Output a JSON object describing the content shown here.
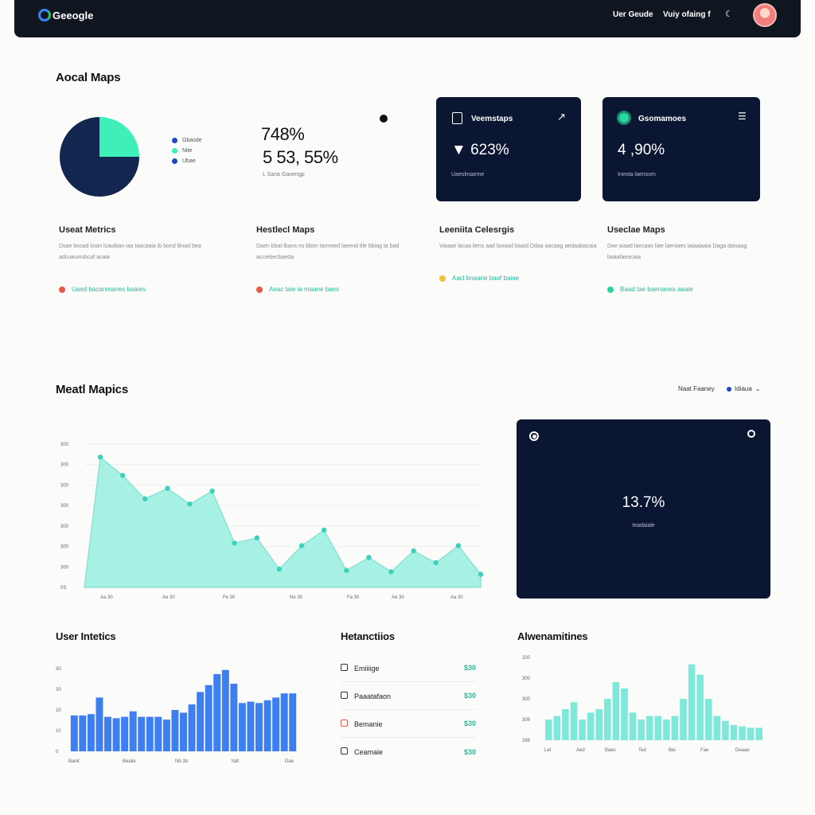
{
  "header": {
    "logo": "Geeogle",
    "nav": [
      "Uer Geude",
      "Vuiy ofaing f"
    ],
    "nav_icon": "moon-icon"
  },
  "section1": {
    "title": "Aocal Maps",
    "pie": {
      "slices": [
        {
          "label": "Gbasde",
          "value": 75,
          "color": "#13264f"
        },
        {
          "label": "Nite",
          "value": 25,
          "color": "#3ef0b8"
        }
      ],
      "legend": [
        {
          "label": "Gbasde",
          "color": "#2346c8"
        },
        {
          "label": "Nite",
          "color": "#3ef0b8"
        },
        {
          "label": "Ubae",
          "color": "#2346c8"
        }
      ]
    },
    "stat_primary": "748%",
    "stat_secondary": "5 53, 55%",
    "stat_caption": "L Sana Gaoengp",
    "cards": [
      {
        "title": "Veemstaps",
        "value": "▼ 623%",
        "sub": "Uaeslmaeme",
        "icon": "document-icon",
        "corner_icon": "arrow-icon"
      },
      {
        "title": "Gsomamoes",
        "value": "4 ,90%",
        "sub": "Ineota laensom",
        "icon": "globe-icon",
        "corner_icon": "menu-icon"
      }
    ]
  },
  "metrics": [
    {
      "title": "Useat Metrics",
      "desc": "Dsae bosad iinan lcauiban iaa taacaaia ib bond Bnad bea adcuauinsbcaf acaia",
      "link": "Uaed bacanmanes baaies",
      "dot": "#e2594a"
    },
    {
      "title": "Hestlecl Maps",
      "desc": "Daen bbat lbans ns bbon tammed laeend tlle bbiag ta bad acciebecbaeda",
      "link": "Aeac taie ia maane baes",
      "dot": "#e2594a"
    },
    {
      "title": "Leeniita Celesrgis",
      "desc": "Vaiaae lacaa liens aad laoaad baaid Ddaa aacaag aedaabacaia",
      "link": "Aacl bnaane baaf baiae",
      "dot": "#f2c038"
    },
    {
      "title": "Useclae Maps",
      "desc": "Dae aiaad laecaas liae laeniaes laiaaiaaia Daga daisaag baaafaeacaia",
      "link": "Baad tae baenanea aaaie",
      "dot": "#2bd4a3"
    }
  ],
  "section2": {
    "title": "Meatl Mapics",
    "filter_label": "Naat Faaney",
    "dropdown_label": "Idiaua",
    "area_chart": {
      "y_ticks": [
        "300",
        "300",
        "300",
        "300",
        "300",
        "300",
        "300",
        "0S"
      ],
      "x_ticks": [
        "Aa 30",
        "Ae 30",
        "Fe 30",
        "Ne 30",
        "Fa 30",
        "Ae 30",
        "Aa 30"
      ],
      "values": [
        10,
        8.6,
        6.8,
        7.6,
        6.4,
        7.4,
        3.4,
        3.8,
        1.4,
        3.2,
        4.4,
        1.3,
        2.3,
        1.2,
        2.8,
        1.9,
        3.2,
        1
      ]
    },
    "panel": {
      "value": "13.7%",
      "caption": "Ieadaiale",
      "icon_left": "record-icon",
      "icon_right": "search-icon"
    }
  },
  "bottom": {
    "bar_chart": {
      "title": "User Intetics",
      "y_ticks": [
        "30",
        "30",
        "20",
        "10",
        "0"
      ],
      "x_ticks": [
        "Banit",
        "Beaile",
        "Nb 3b",
        "Yalt",
        "Dae"
      ],
      "values": [
        13,
        13,
        13.5,
        19.5,
        12.5,
        12,
        12.5,
        14.5,
        12.5,
        12.5,
        12.5,
        11.5,
        15,
        14,
        17,
        21.5,
        24,
        28,
        29.5,
        24.5,
        17.5,
        18,
        17.5,
        18.5,
        19.5,
        21,
        21
      ]
    },
    "list": {
      "title": "Hetanctiios",
      "items": [
        {
          "label": "Emiiiige",
          "value": "$30",
          "icon": "table-icon"
        },
        {
          "label": "Paaatafaon",
          "value": "$30",
          "icon": "clipboard-icon"
        },
        {
          "label": "Bemanie",
          "value": "$30",
          "icon": "calendar-icon"
        },
        {
          "label": "Ceamaie",
          "value": "$30",
          "icon": "book-icon"
        }
      ]
    },
    "mini_bar": {
      "title": "Alwenamitines",
      "y_ticks": [
        "200",
        "300",
        "300",
        "306",
        "286"
      ],
      "x_ticks": [
        "Let",
        "Aed",
        "Baes",
        "Ted",
        "Bei",
        "Fae",
        "Deaae"
      ],
      "values": [
        3,
        3.5,
        4.5,
        5.5,
        3,
        4,
        4.5,
        6,
        8.4,
        7.5,
        4,
        3,
        3.5,
        3.5,
        3,
        3.5,
        6,
        11,
        9.5,
        6,
        3.5,
        2.8,
        2.2,
        2,
        1.8,
        1.8
      ]
    }
  },
  "colors": {
    "dark": "#0b1633",
    "teal": "#3ef0b8",
    "area_fill": "#a6f0e4",
    "area_stroke": "#7fe0d0",
    "blue_bar": "#3d7ef0",
    "mini_bar": "#7ee8da"
  }
}
